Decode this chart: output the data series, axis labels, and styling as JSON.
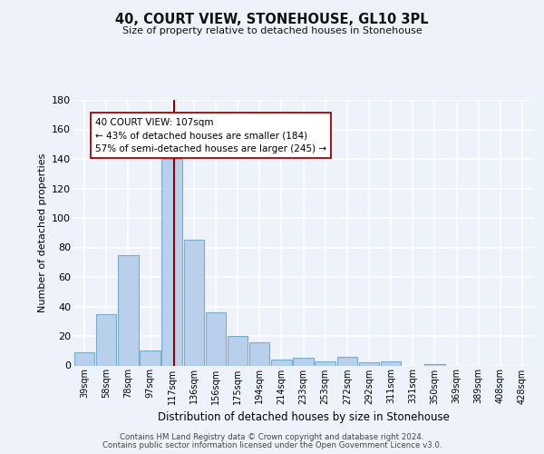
{
  "title": "40, COURT VIEW, STONEHOUSE, GL10 3PL",
  "subtitle": "Size of property relative to detached houses in Stonehouse",
  "xlabel": "Distribution of detached houses by size in Stonehouse",
  "ylabel": "Number of detached properties",
  "bar_labels": [
    "39sqm",
    "58sqm",
    "78sqm",
    "97sqm",
    "117sqm",
    "136sqm",
    "156sqm",
    "175sqm",
    "194sqm",
    "214sqm",
    "233sqm",
    "253sqm",
    "272sqm",
    "292sqm",
    "311sqm",
    "331sqm",
    "350sqm",
    "369sqm",
    "389sqm",
    "408sqm",
    "428sqm"
  ],
  "bar_values": [
    9,
    35,
    75,
    10,
    140,
    85,
    36,
    20,
    16,
    4,
    5,
    3,
    6,
    2,
    3,
    0,
    1,
    0,
    0,
    0,
    0
  ],
  "bar_color": "#b8d0eb",
  "bar_edge_color": "#7aacce",
  "ylim": [
    0,
    180
  ],
  "yticks": [
    0,
    20,
    40,
    60,
    80,
    100,
    120,
    140,
    160,
    180
  ],
  "property_label": "40 COURT VIEW: 107sqm",
  "annotation_line1": "← 43% of detached houses are smaller (184)",
  "annotation_line2": "57% of semi-detached houses are larger (245) →",
  "red_line_x": 4.1,
  "background_color": "#eef2fb",
  "plot_bg_color": "#eef2fb",
  "grid_color": "#ffffff",
  "footer1": "Contains HM Land Registry data © Crown copyright and database right 2024.",
  "footer2": "Contains public sector information licensed under the Open Government Licence v3.0."
}
